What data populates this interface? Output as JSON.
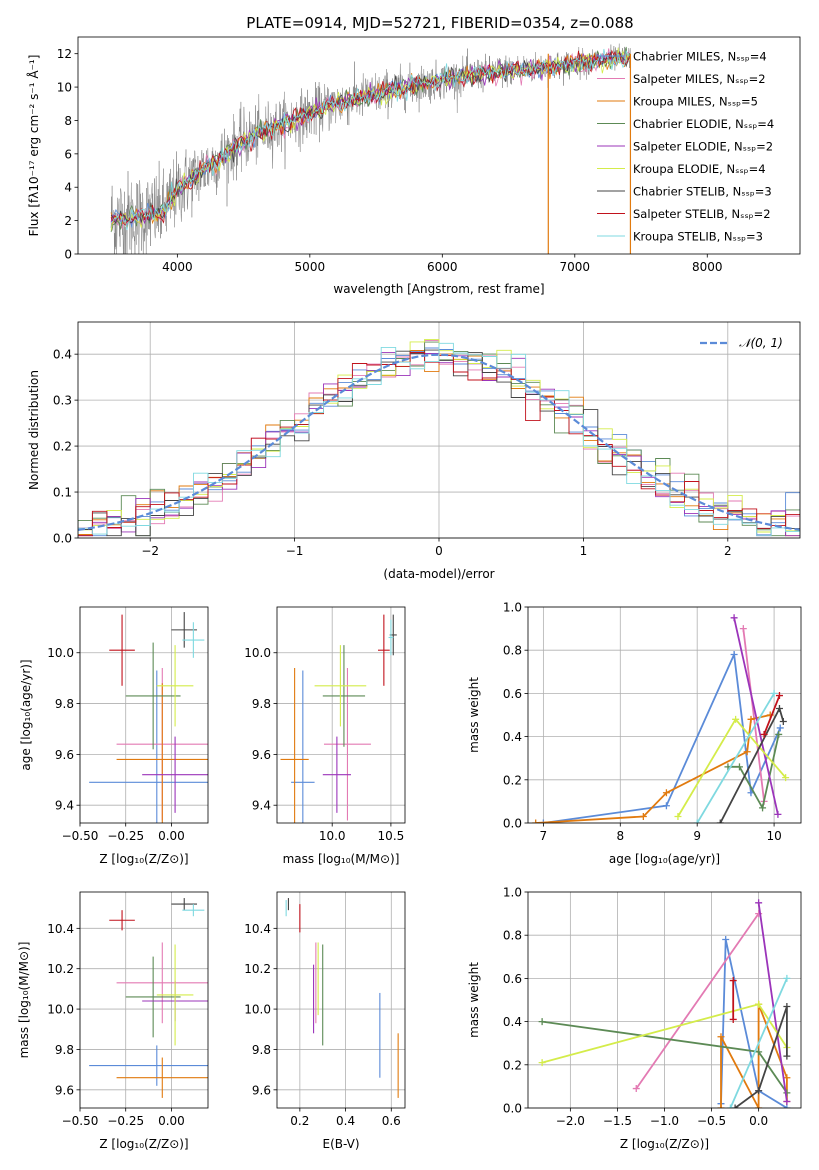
{
  "figure_title": "PLATE=0914, MJD=52721, FIBERID=0354, z=0.088",
  "colors": {
    "Chabrier MILES": "#5b8bd8",
    "Salpeter MILES": "#e37ab3",
    "Kroupa MILES": "#e17a0e",
    "Chabrier ELODIE": "#5c8a55",
    "Salpeter ELODIE": "#9b34ba",
    "Kroupa ELODIE": "#d4ec4a",
    "Chabrier STELIB": "#444444",
    "Salpeter STELIB": "#c1121c",
    "Kroupa STELIB": "#7fd9e0",
    "data": "#808080",
    "normal": "#5b8bd8"
  },
  "chart_data": [
    {
      "id": "spectrum",
      "type": "line",
      "xlabel": "wavelength [Angstrom, rest frame]",
      "ylabel": "Flux [fλ10⁻¹⁷ erg cm⁻² s⁻¹ Å⁻¹]",
      "xlim": [
        3250,
        8700
      ],
      "ylim": [
        0,
        13
      ],
      "xticks": [
        4000,
        5000,
        6000,
        7000,
        8000
      ],
      "yticks": [
        0,
        2,
        4,
        6,
        8,
        10,
        12
      ],
      "grid": false,
      "legend_position": "right",
      "legend": [
        {
          "label": "Chabrier MILES",
          "nssp": "4"
        },
        {
          "label": "Salpeter MILES",
          "nssp": "2"
        },
        {
          "label": "Kroupa MILES",
          "nssp": "5"
        },
        {
          "label": "Chabrier ELODIE",
          "nssp": "4"
        },
        {
          "label": "Salpeter ELODIE",
          "nssp": "2"
        },
        {
          "label": "Kroupa ELODIE",
          "nssp": "4"
        },
        {
          "label": "Chabrier STELIB",
          "nssp": "3"
        },
        {
          "label": "Salpeter STELIB",
          "nssp": "2"
        },
        {
          "label": "Kroupa STELIB",
          "nssp": "3"
        }
      ],
      "continuum": {
        "wavelength": [
          3500,
          3700,
          3900,
          4000,
          4100,
          4300,
          4500,
          4800,
          5000,
          5200,
          5500,
          5800,
          6000,
          6200,
          6500,
          6800,
          7000,
          7200,
          7400
        ],
        "flux": [
          2.0,
          2.2,
          2.6,
          3.8,
          4.5,
          5.6,
          6.8,
          7.8,
          8.4,
          9.0,
          9.6,
          10.1,
          10.4,
          10.7,
          11.0,
          11.2,
          11.4,
          11.6,
          11.8
        ]
      },
      "noise_amplitude": [
        [
          3500,
          2.5
        ],
        [
          4200,
          1.6
        ],
        [
          5200,
          1.2
        ],
        [
          6000,
          0.9
        ],
        [
          7400,
          0.6
        ]
      ],
      "spikes": [
        {
          "x": 6800,
          "color": "#e17a0e"
        },
        {
          "x": 7420,
          "color": "#e17a0e"
        }
      ]
    },
    {
      "id": "residuals",
      "type": "histogram",
      "xlabel": "(data-model)/error",
      "ylabel": "Normed distribution",
      "xlim": [
        -2.5,
        2.5
      ],
      "ylim": [
        0,
        0.47
      ],
      "xticks": [
        -2,
        -1,
        0,
        1,
        2
      ],
      "yticks": [
        0.0,
        0.1,
        0.2,
        0.3,
        0.4
      ],
      "grid": true,
      "legend": "𝒩(0, 1)",
      "legend_position": "top-right",
      "bins": 50,
      "curve": "normal pdf, mean 0, sigma 1"
    },
    {
      "id": "age_vs_Z",
      "type": "errorbar",
      "xlabel": "Z [log₁₀(Z/Z⊙)]",
      "ylabel": "age [log₁₀(age/yr)]",
      "xlim": [
        -0.5,
        0.2
      ],
      "ylim": [
        9.33,
        10.18
      ],
      "xticks": [
        -0.5,
        -0.25,
        0.0
      ],
      "yticks": [
        9.4,
        9.6,
        9.8,
        10.0
      ],
      "grid": true,
      "points": [
        {
          "model": "Chabrier MILES",
          "x": -0.08,
          "xerr": 0.37,
          "y": 9.49,
          "yerr": 0.44
        },
        {
          "model": "Salpeter MILES",
          "x": -0.05,
          "xerr": 0.25,
          "y": 9.64,
          "yerr": 0.3
        },
        {
          "model": "Kroupa MILES",
          "x": -0.05,
          "xerr": 0.25,
          "y": 9.58,
          "yerr": 0.3
        },
        {
          "model": "Chabrier ELODIE",
          "x": -0.1,
          "xerr": 0.15,
          "y": 9.83,
          "yerr": 0.21
        },
        {
          "model": "Salpeter ELODIE",
          "x": 0.02,
          "xerr": 0.18,
          "y": 9.52,
          "yerr": 0.15
        },
        {
          "model": "Kroupa ELODIE",
          "x": 0.02,
          "xerr": 0.1,
          "y": 9.87,
          "yerr": 0.16
        },
        {
          "model": "Chabrier STELIB",
          "x": 0.07,
          "xerr": 0.07,
          "y": 10.09,
          "yerr": 0.07
        },
        {
          "model": "Salpeter STELIB",
          "x": -0.27,
          "xerr": 0.07,
          "y": 10.01,
          "yerr": 0.14
        },
        {
          "model": "Kroupa STELIB",
          "x": 0.12,
          "xerr": 0.06,
          "y": 10.05,
          "yerr": 0.07
        }
      ]
    },
    {
      "id": "age_vs_mass",
      "type": "errorbar",
      "xlabel": "mass [log₁₀(M/M⊙)]",
      "xlim": [
        9.53,
        10.62
      ],
      "ylim": [
        9.33,
        10.18
      ],
      "xticks": [
        10.0,
        10.5
      ],
      "yticks": [
        9.4,
        9.6,
        9.8,
        10.0
      ],
      "grid": true,
      "points": [
        {
          "model": "Chabrier MILES",
          "x": 9.75,
          "xerr": 0.1,
          "y": 9.49,
          "yerr": 0.44
        },
        {
          "model": "Salpeter MILES",
          "x": 10.13,
          "xerr": 0.2,
          "y": 9.64,
          "yerr": 0.3
        },
        {
          "model": "Kroupa MILES",
          "x": 9.68,
          "xerr": 0.12,
          "y": 9.58,
          "yerr": 0.36
        },
        {
          "model": "Chabrier ELODIE",
          "x": 10.1,
          "xerr": 0.18,
          "y": 9.83,
          "yerr": 0.2
        },
        {
          "model": "Salpeter ELODIE",
          "x": 10.04,
          "xerr": 0.12,
          "y": 9.52,
          "yerr": 0.15
        },
        {
          "model": "Kroupa ELODIE",
          "x": 10.07,
          "xerr": 0.22,
          "y": 9.87,
          "yerr": 0.16
        },
        {
          "model": "Chabrier STELIB",
          "x": 10.52,
          "xerr": 0.03,
          "y": 10.07,
          "yerr": 0.08
        },
        {
          "model": "Salpeter STELIB",
          "x": 10.44,
          "xerr": 0.05,
          "y": 10.01,
          "yerr": 0.14
        },
        {
          "model": "Kroupa STELIB",
          "x": 10.5,
          "xerr": 0.02,
          "y": 10.06,
          "yerr": 0.07
        }
      ]
    },
    {
      "id": "weight_vs_age",
      "type": "line",
      "xlabel": "age [log₁₀(age/yr)]",
      "ylabel": "mass weight",
      "xlim": [
        6.8,
        10.35
      ],
      "ylim": [
        0,
        1.0
      ],
      "xticks": [
        7,
        8,
        9,
        10
      ],
      "yticks": [
        0.0,
        0.2,
        0.4,
        0.6,
        0.8,
        1.0
      ],
      "grid": true,
      "series": [
        {
          "model": "Chabrier MILES",
          "x": [
            7.0,
            8.6,
            9.48,
            9.7,
            10.08
          ],
          "y": [
            0.0,
            0.08,
            0.78,
            0.14,
            0.44
          ]
        },
        {
          "model": "Salpeter MILES",
          "x": [
            9.6,
            9.87
          ],
          "y": [
            0.9,
            0.1
          ]
        },
        {
          "model": "Kroupa MILES",
          "x": [
            6.9,
            8.3,
            8.6,
            9.65,
            9.7,
            9.95
          ],
          "y": [
            0.0,
            0.03,
            0.14,
            0.33,
            0.48,
            0.5
          ]
        },
        {
          "model": "Chabrier ELODIE",
          "x": [
            9.4,
            9.55,
            9.85,
            10.06
          ],
          "y": [
            0.26,
            0.26,
            0.07,
            0.41
          ]
        },
        {
          "model": "Salpeter ELODIE",
          "x": [
            9.48,
            10.05
          ],
          "y": [
            0.95,
            0.04
          ]
        },
        {
          "model": "Kroupa ELODIE",
          "x": [
            8.75,
            9.5,
            10.15
          ],
          "y": [
            0.03,
            0.48,
            0.21
          ]
        },
        {
          "model": "Chabrier STELIB",
          "x": [
            9.3,
            10.07,
            10.12
          ],
          "y": [
            0.0,
            0.53,
            0.47
          ]
        },
        {
          "model": "Salpeter STELIB",
          "x": [
            9.87,
            10.07
          ],
          "y": [
            0.41,
            0.59
          ]
        },
        {
          "model": "Kroupa STELIB",
          "x": [
            9.0,
            10.0
          ],
          "y": [
            0.0,
            0.6
          ]
        }
      ]
    },
    {
      "id": "mass_vs_Z",
      "type": "errorbar",
      "xlabel": "Z [log₁₀(Z/Z⊙)]",
      "ylabel": "mass [log₁₀(M/M⊙)]",
      "xlim": [
        -0.5,
        0.2
      ],
      "ylim": [
        9.51,
        10.58
      ],
      "xticks": [
        -0.5,
        -0.25,
        0.0
      ],
      "yticks": [
        9.6,
        9.8,
        10.0,
        10.2,
        10.4
      ],
      "grid": true,
      "points": [
        {
          "model": "Chabrier MILES",
          "x": -0.08,
          "xerr": 0.37,
          "y": 9.72,
          "yerr": 0.1
        },
        {
          "model": "Salpeter MILES",
          "x": -0.05,
          "xerr": 0.25,
          "y": 10.13,
          "yerr": 0.2
        },
        {
          "model": "Kroupa MILES",
          "x": -0.05,
          "xerr": 0.25,
          "y": 9.66,
          "yerr": 0.1
        },
        {
          "model": "Chabrier ELODIE",
          "x": -0.1,
          "xerr": 0.15,
          "y": 10.06,
          "yerr": 0.2
        },
        {
          "model": "Salpeter ELODIE",
          "x": 0.02,
          "xerr": 0.18,
          "y": 10.04,
          "yerr": 0.1
        },
        {
          "model": "Kroupa ELODIE",
          "x": 0.02,
          "xerr": 0.1,
          "y": 10.07,
          "yerr": 0.25
        },
        {
          "model": "Chabrier STELIB",
          "x": 0.07,
          "xerr": 0.07,
          "y": 10.52,
          "yerr": 0.03
        },
        {
          "model": "Salpeter STELIB",
          "x": -0.27,
          "xerr": 0.07,
          "y": 10.44,
          "yerr": 0.05
        },
        {
          "model": "Kroupa STELIB",
          "x": 0.12,
          "xerr": 0.06,
          "y": 10.49,
          "yerr": 0.03
        }
      ]
    },
    {
      "id": "mass_vs_ebv",
      "type": "errorbar",
      "xlabel": "E(B-V)",
      "xlim": [
        0.1,
        0.66
      ],
      "ylim": [
        9.51,
        10.58
      ],
      "xticks": [
        0.2,
        0.4,
        0.6
      ],
      "yticks": [
        9.6,
        9.8,
        10.0,
        10.2,
        10.4
      ],
      "grid": true,
      "points": [
        {
          "model": "Chabrier MILES",
          "x": 0.55,
          "y": 9.87,
          "yerr": 0.21
        },
        {
          "model": "Salpeter MILES",
          "x": 0.27,
          "y": 10.13,
          "yerr": 0.2
        },
        {
          "model": "Kroupa MILES",
          "x": 0.63,
          "y": 9.72,
          "yerr": 0.16
        },
        {
          "model": "Chabrier ELODIE",
          "x": 0.3,
          "y": 10.07,
          "yerr": 0.25
        },
        {
          "model": "Salpeter ELODIE",
          "x": 0.26,
          "y": 10.05,
          "yerr": 0.17
        },
        {
          "model": "Kroupa ELODIE",
          "x": 0.28,
          "y": 10.15,
          "yerr": 0.18
        },
        {
          "model": "Chabrier STELIB",
          "x": 0.15,
          "y": 10.52,
          "yerr": 0.03
        },
        {
          "model": "Salpeter STELIB",
          "x": 0.2,
          "y": 10.45,
          "yerr": 0.07
        },
        {
          "model": "Kroupa STELIB",
          "x": 0.14,
          "y": 10.5,
          "yerr": 0.04
        }
      ]
    },
    {
      "id": "weight_vs_Z",
      "type": "line",
      "xlabel": "Z [log₁₀(Z/Z⊙)]",
      "ylabel": "mass weight",
      "xlim": [
        -2.45,
        0.45
      ],
      "ylim": [
        0,
        1.0
      ],
      "xticks": [
        -2.0,
        -1.5,
        -1.0,
        -0.5,
        0.0
      ],
      "yticks": [
        0.0,
        0.2,
        0.4,
        0.6,
        0.8,
        1.0
      ],
      "grid": true,
      "series": [
        {
          "model": "Chabrier MILES",
          "x": [
            -0.4,
            -0.35,
            0.0,
            0.3
          ],
          "y": [
            0.02,
            0.78,
            0.08,
            0.0
          ]
        },
        {
          "model": "Salpeter MILES",
          "x": [
            -1.3,
            0.0
          ],
          "y": [
            0.09,
            0.9
          ]
        },
        {
          "model": "Kroupa MILES",
          "x": [
            -0.4,
            -0.4,
            0.0,
            0.0,
            0.3,
            0.3
          ],
          "y": [
            0.0,
            0.33,
            0.0,
            0.48,
            0.14,
            0.03
          ]
        },
        {
          "model": "Chabrier ELODIE",
          "x": [
            -2.3,
            0.0,
            0.3
          ],
          "y": [
            0.4,
            0.26,
            0.07
          ]
        },
        {
          "model": "Salpeter ELODIE",
          "x": [
            0.0,
            0.3
          ],
          "y": [
            0.95,
            0.03
          ]
        },
        {
          "model": "Kroupa ELODIE",
          "x": [
            -2.3,
            0.0,
            0.3
          ],
          "y": [
            0.21,
            0.48,
            0.28
          ]
        },
        {
          "model": "Chabrier STELIB",
          "x": [
            -0.25,
            0.0,
            0.3,
            0.3
          ],
          "y": [
            0.0,
            0.08,
            0.47,
            0.24
          ]
        },
        {
          "model": "Salpeter STELIB",
          "x": [
            -0.27,
            -0.27
          ],
          "y": [
            0.41,
            0.59
          ]
        },
        {
          "model": "Kroupa STELIB",
          "x": [
            -0.3,
            0.3
          ],
          "y": [
            0.0,
            0.6
          ]
        }
      ]
    }
  ]
}
